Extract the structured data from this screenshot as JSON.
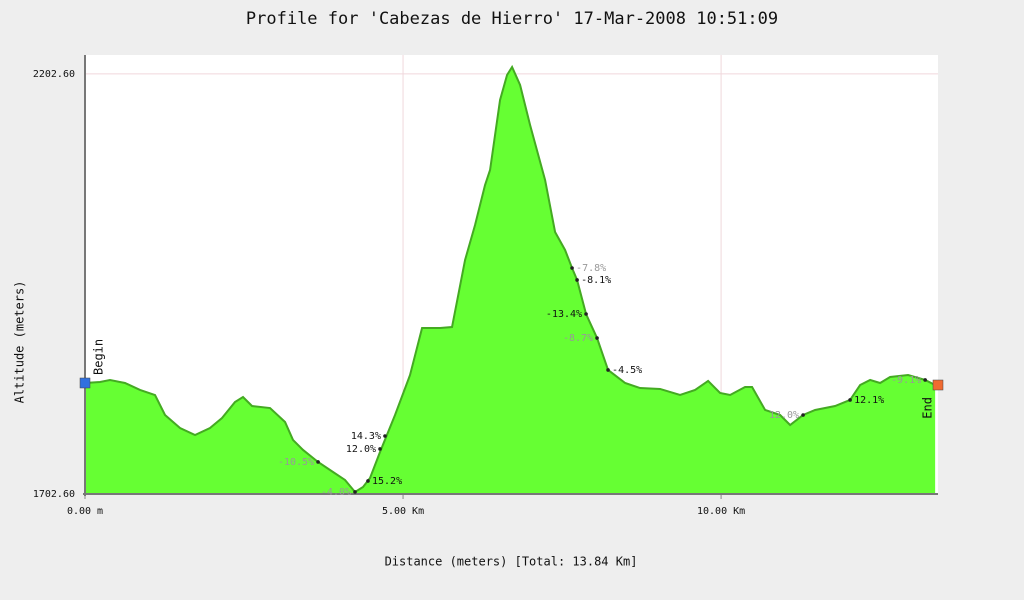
{
  "chart_data": {
    "type": "area",
    "title": "Profile for 'Cabezas de Hierro' 17-Mar-2008 10:51:09",
    "x_label": "Distance (meters) [Total: 13.84 Km]",
    "y_label": "Altitude (meters)",
    "xlim": [
      0,
      13410
    ],
    "ylim": [
      1702.6,
      2225
    ],
    "xticks": [
      {
        "value": 0,
        "label": "0.00 m"
      },
      {
        "value": 5000,
        "label": "5.00 Km"
      },
      {
        "value": 10000,
        "label": "10.00 Km"
      }
    ],
    "yticks": [
      {
        "value": 1702.6,
        "label": "1702.60"
      },
      {
        "value": 2202.6,
        "label": "2202.60"
      }
    ],
    "grid": true,
    "color": "#66ff33",
    "line_color": "#44aa22",
    "x": [
      0,
      236,
      393,
      629,
      865,
      1101,
      1258,
      1494,
      1730,
      1965,
      2154,
      2358,
      2484,
      2626,
      2909,
      3145,
      3270,
      3428,
      3664,
      3899,
      4088,
      4245,
      4371,
      4481,
      4638,
      4874,
      5110,
      5299,
      5582,
      5770,
      5975,
      6132,
      6289,
      6368,
      6525,
      6635,
      6714,
      6840,
      6997,
      7233,
      7390,
      7547,
      7657,
      7736,
      7877,
      8050,
      8223,
      8491,
      8726,
      9041,
      9355,
      9591,
      9796,
      9984,
      10142,
      10377,
      10487,
      10692,
      10928,
      11085,
      11289,
      11478,
      11792,
      12028,
      12186,
      12343,
      12500,
      12657,
      12940,
      13208,
      13365
    ],
    "values": [
      1834.7,
      1835.9,
      1838.3,
      1834.7,
      1826.4,
      1820.4,
      1796.6,
      1781.1,
      1772.8,
      1781.1,
      1793.0,
      1812.1,
      1818.0,
      1807.3,
      1804.9,
      1788.3,
      1766.9,
      1755.0,
      1740.7,
      1728.8,
      1719.3,
      1705.0,
      1710.9,
      1721.6,
      1752.6,
      1796.6,
      1844.2,
      1900.1,
      1900.1,
      1901.3,
      1981.1,
      2022.7,
      2070.3,
      2088.2,
      2171.5,
      2201.2,
      2210.7,
      2189.3,
      2141.7,
      2076.3,
      2014.4,
      1993.0,
      1971.5,
      1957.3,
      1916.8,
      1888.2,
      1850.2,
      1834.7,
      1828.7,
      1827.6,
      1820.4,
      1826.4,
      1837.1,
      1822.8,
      1820.4,
      1829.9,
      1829.9,
      1802.6,
      1796.6,
      1784.7,
      1796.6,
      1802.6,
      1807.3,
      1814.5,
      1832.3,
      1838.3,
      1834.7,
      1841.8,
      1844.2,
      1838.3,
      1832.3
    ],
    "annotations": [
      {
        "text": "-10.5%",
        "x": 3664,
        "y": 1740.7,
        "side": "left",
        "faded": true
      },
      {
        "text": "14.3%",
        "x": 4716,
        "y": 1771.6,
        "side": "left",
        "faded": false
      },
      {
        "text": "12.0%",
        "x": 4638,
        "y": 1756.2,
        "side": "left",
        "faded": false
      },
      {
        "text": "15.2%",
        "x": 4449,
        "y": 1718.1,
        "side": "right",
        "faded": false
      },
      {
        "text": "-4.0%",
        "x": 4245,
        "y": 1705.0,
        "side": "left",
        "faded": true
      },
      {
        "text": "-7.8%",
        "x": 7657,
        "y": 1971.5,
        "side": "right",
        "faded": true
      },
      {
        "text": "-8.1%",
        "x": 7736,
        "y": 1957.3,
        "side": "right",
        "faded": false
      },
      {
        "text": "-13.4%",
        "x": 7877,
        "y": 1916.8,
        "side": "left",
        "faded": false
      },
      {
        "text": "-8.7%",
        "x": 8050,
        "y": 1888.2,
        "side": "left",
        "faded": true
      },
      {
        "text": "-4.5%",
        "x": 8223,
        "y": 1850.2,
        "side": "right",
        "faded": false
      },
      {
        "text": "12.0%",
        "x": 11289,
        "y": 1796.6,
        "side": "left",
        "faded": true
      },
      {
        "text": "12.1%",
        "x": 12028,
        "y": 1814.5,
        "side": "right",
        "faded": false
      },
      {
        "text": "-9.1%",
        "x": 13208,
        "y": 1838.3,
        "side": "left",
        "faded": true
      }
    ],
    "markers": [
      {
        "label": "Begin",
        "color": "#3070e0"
      },
      {
        "label": "End",
        "color": "#f06a30"
      }
    ]
  }
}
